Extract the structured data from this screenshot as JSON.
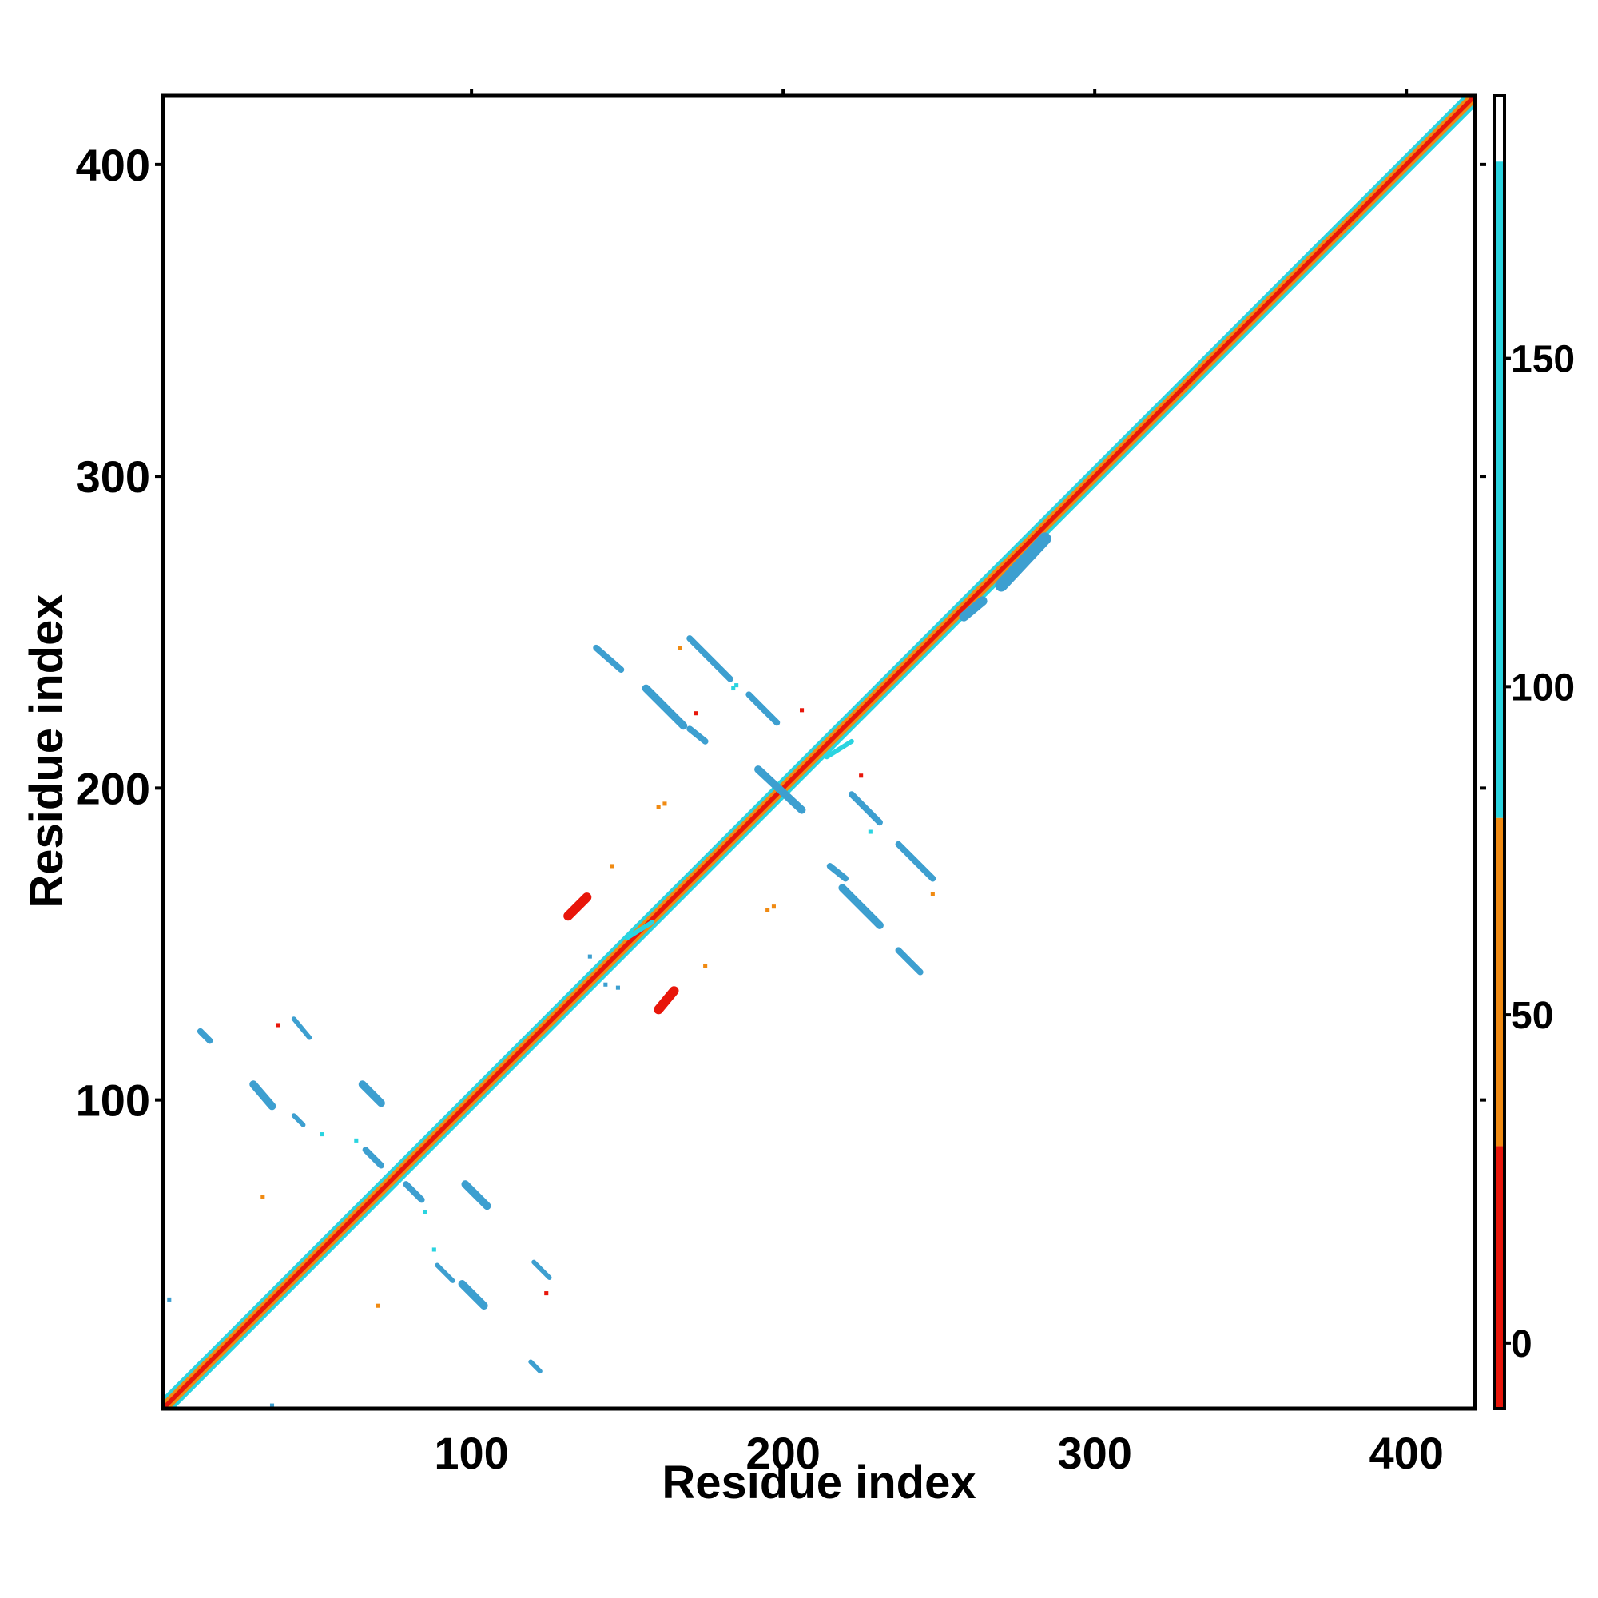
{
  "chart_data": {
    "type": "heatmap",
    "title": "",
    "xlabel": "Residue index",
    "ylabel": "Residue index",
    "xlim": [
      1,
      422
    ],
    "ylim": [
      1,
      422
    ],
    "x_ticks": [
      100,
      200,
      300,
      400
    ],
    "y_ticks": [
      100,
      200,
      300,
      400
    ],
    "x_tick_labels": [
      "100",
      "200",
      "300",
      "400"
    ],
    "y_tick_labels": [
      "100",
      "200",
      "300",
      "400"
    ],
    "colorbar": {
      "range": [
        -10,
        190
      ],
      "ticks": [
        0,
        50,
        100,
        150
      ],
      "tick_labels": [
        "0",
        "50",
        "100",
        "150"
      ],
      "bands": [
        {
          "from": -10,
          "to": 30,
          "color": "#e8160a"
        },
        {
          "from": 30,
          "to": 80,
          "color": "#f08a12"
        },
        {
          "from": 80,
          "to": 180,
          "color": "#2ad4e0"
        },
        {
          "from": 180,
          "to": 190,
          "color": "#ffffff"
        }
      ]
    },
    "colors": {
      "red": "#e8160a",
      "orange": "#f08a12",
      "cyan": "#2ad4e0",
      "blue": "#3d9fd0"
    },
    "diagonal": {
      "from": 1,
      "to": 422
    },
    "features": [
      {
        "kind": "bar",
        "x1": 270,
        "y1": 265,
        "x2": 284,
        "y2": 280,
        "color": "blue",
        "width": 4
      },
      {
        "kind": "bar",
        "x1": 258,
        "y1": 255,
        "x2": 264,
        "y2": 260,
        "color": "blue",
        "width": 3
      },
      {
        "kind": "bar",
        "x1": 140,
        "y1": 245,
        "x2": 148,
        "y2": 238,
        "color": "blue",
        "width": 2
      },
      {
        "kind": "bar",
        "x1": 170,
        "y1": 248,
        "x2": 183,
        "y2": 235,
        "color": "blue",
        "width": 2
      },
      {
        "kind": "bar",
        "x1": 189,
        "y1": 230,
        "x2": 198,
        "y2": 221,
        "color": "blue",
        "width": 2
      },
      {
        "kind": "bar",
        "x1": 156,
        "y1": 232,
        "x2": 168,
        "y2": 220,
        "color": "blue",
        "width": 2.5
      },
      {
        "kind": "bar",
        "x1": 170,
        "y1": 219,
        "x2": 175,
        "y2": 215,
        "color": "blue",
        "width": 2
      },
      {
        "kind": "bar",
        "x1": 192,
        "y1": 206,
        "x2": 206,
        "y2": 193,
        "color": "blue",
        "width": 2.5
      },
      {
        "kind": "bar",
        "x1": 222,
        "y1": 198,
        "x2": 231,
        "y2": 189,
        "color": "blue",
        "width": 2
      },
      {
        "kind": "bar",
        "x1": 237,
        "y1": 182,
        "x2": 248,
        "y2": 171,
        "color": "blue",
        "width": 2
      },
      {
        "kind": "bar",
        "x1": 215,
        "y1": 175,
        "x2": 220,
        "y2": 171,
        "color": "blue",
        "width": 2
      },
      {
        "kind": "bar",
        "x1": 219,
        "y1": 168,
        "x2": 231,
        "y2": 156,
        "color": "blue",
        "width": 2.5
      },
      {
        "kind": "bar",
        "x1": 237,
        "y1": 148,
        "x2": 244,
        "y2": 141,
        "color": "blue",
        "width": 2
      },
      {
        "kind": "bar",
        "x1": 131,
        "y1": 159,
        "x2": 137,
        "y2": 165,
        "color": "red",
        "width": 3
      },
      {
        "kind": "bar",
        "x1": 160,
        "y1": 129,
        "x2": 165,
        "y2": 135,
        "color": "red",
        "width": 3
      },
      {
        "kind": "bar",
        "x1": 13,
        "y1": 122,
        "x2": 16,
        "y2": 119,
        "color": "blue",
        "width": 2
      },
      {
        "kind": "bar",
        "x1": 43,
        "y1": 126,
        "x2": 48,
        "y2": 120,
        "color": "blue",
        "width": 1.5
      },
      {
        "kind": "bar",
        "x1": 30,
        "y1": 105,
        "x2": 36,
        "y2": 98,
        "color": "blue",
        "width": 2.5
      },
      {
        "kind": "bar",
        "x1": 65,
        "y1": 105,
        "x2": 71,
        "y2": 99,
        "color": "blue",
        "width": 2.5
      },
      {
        "kind": "bar",
        "x1": 43,
        "y1": 95,
        "x2": 46,
        "y2": 92,
        "color": "blue",
        "width": 1.5
      },
      {
        "kind": "bar",
        "x1": 66,
        "y1": 84,
        "x2": 71,
        "y2": 79,
        "color": "blue",
        "width": 2
      },
      {
        "kind": "bar",
        "x1": 79,
        "y1": 73,
        "x2": 84,
        "y2": 68,
        "color": "blue",
        "width": 2
      },
      {
        "kind": "bar",
        "x1": 98,
        "y1": 73,
        "x2": 105,
        "y2": 66,
        "color": "blue",
        "width": 2.5
      },
      {
        "kind": "bar",
        "x1": 89,
        "y1": 47,
        "x2": 94,
        "y2": 42,
        "color": "blue",
        "width": 1.5
      },
      {
        "kind": "bar",
        "x1": 97,
        "y1": 41,
        "x2": 104,
        "y2": 34,
        "color": "blue",
        "width": 2.5
      },
      {
        "kind": "bar",
        "x1": 120,
        "y1": 48,
        "x2": 125,
        "y2": 43,
        "color": "blue",
        "width": 1.5
      },
      {
        "kind": "bar",
        "x1": 119,
        "y1": 16,
        "x2": 122,
        "y2": 13,
        "color": "blue",
        "width": 1.5
      },
      {
        "kind": "bar",
        "x1": 214,
        "y1": 210,
        "x2": 222,
        "y2": 215,
        "color": "cyan",
        "width": 1.5
      },
      {
        "kind": "bar",
        "x1": 150,
        "y1": 152,
        "x2": 158,
        "y2": 157,
        "color": "cyan",
        "width": 1.5
      },
      {
        "kind": "dot",
        "x": 228,
        "y": 186,
        "color": "cyan"
      },
      {
        "kind": "dot",
        "x": 184,
        "y": 232,
        "color": "cyan"
      },
      {
        "kind": "dot",
        "x": 185,
        "y": 233,
        "color": "cyan"
      },
      {
        "kind": "dot",
        "x": 52,
        "y": 89,
        "color": "cyan"
      },
      {
        "kind": "dot",
        "x": 63,
        "y": 87,
        "color": "cyan"
      },
      {
        "kind": "dot",
        "x": 85,
        "y": 64,
        "color": "cyan"
      },
      {
        "kind": "dot",
        "x": 88,
        "y": 52,
        "color": "cyan"
      },
      {
        "kind": "dot",
        "x": 3,
        "y": 36,
        "color": "blue"
      },
      {
        "kind": "dot",
        "x": 36,
        "y": 2,
        "color": "blue"
      },
      {
        "kind": "dot",
        "x": 138,
        "y": 146,
        "color": "blue"
      },
      {
        "kind": "dot",
        "x": 143,
        "y": 137,
        "color": "blue"
      },
      {
        "kind": "dot",
        "x": 147,
        "y": 136,
        "color": "blue"
      },
      {
        "kind": "dot",
        "x": 167,
        "y": 245,
        "color": "orange"
      },
      {
        "kind": "dot",
        "x": 172,
        "y": 224,
        "color": "red"
      },
      {
        "kind": "dot",
        "x": 206,
        "y": 225,
        "color": "red"
      },
      {
        "kind": "dot",
        "x": 225,
        "y": 204,
        "color": "red"
      },
      {
        "kind": "dot",
        "x": 160,
        "y": 194,
        "color": "orange"
      },
      {
        "kind": "dot",
        "x": 162,
        "y": 195,
        "color": "orange"
      },
      {
        "kind": "dot",
        "x": 145,
        "y": 175,
        "color": "orange"
      },
      {
        "kind": "dot",
        "x": 195,
        "y": 161,
        "color": "orange"
      },
      {
        "kind": "dot",
        "x": 197,
        "y": 162,
        "color": "orange"
      },
      {
        "kind": "dot",
        "x": 175,
        "y": 143,
        "color": "orange"
      },
      {
        "kind": "dot",
        "x": 248,
        "y": 166,
        "color": "orange"
      },
      {
        "kind": "dot",
        "x": 38,
        "y": 124,
        "color": "red"
      },
      {
        "kind": "dot",
        "x": 33,
        "y": 69,
        "color": "orange"
      },
      {
        "kind": "dot",
        "x": 70,
        "y": 34,
        "color": "orange"
      },
      {
        "kind": "dot",
        "x": 124,
        "y": 38,
        "color": "red"
      }
    ]
  }
}
